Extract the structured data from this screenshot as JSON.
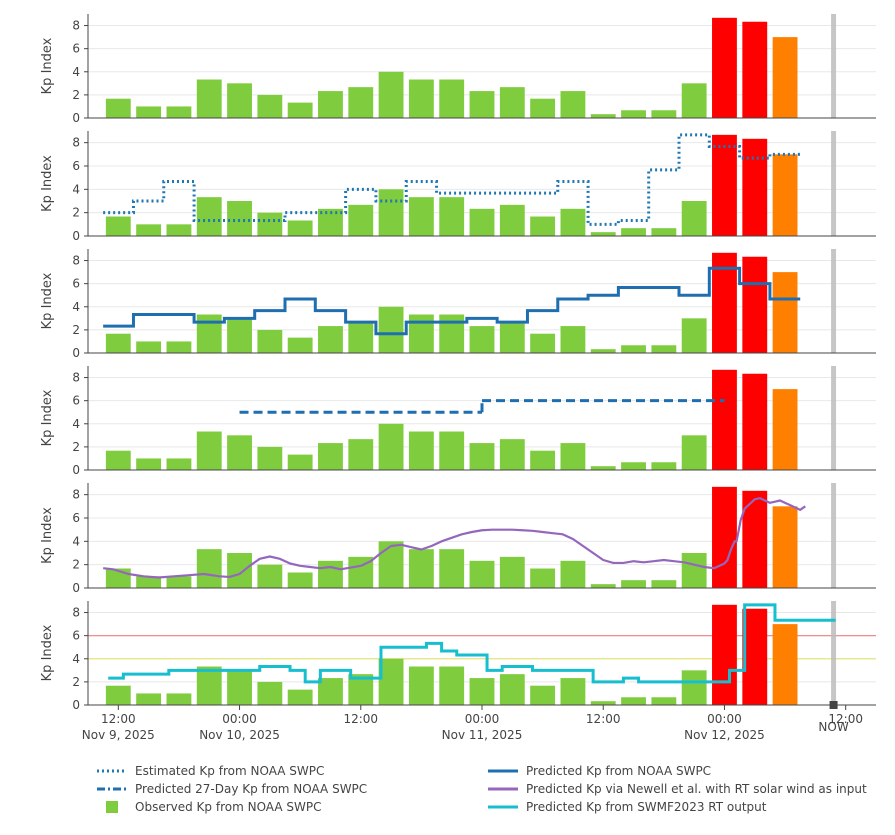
{
  "chart_data": {
    "type": "bar+line",
    "ylabel": "Kp Index",
    "ylim": [
      0,
      9
    ],
    "yticks": [
      0,
      2,
      4,
      6,
      8
    ],
    "xlim_hours": [
      -3,
      75
    ],
    "x_ticks": [
      {
        "hour": 0,
        "time": "12:00",
        "date": "Nov 9, 2025"
      },
      {
        "hour": 12,
        "time": "00:00",
        "date": "Nov 10, 2025"
      },
      {
        "hour": 24,
        "time": "12:00",
        "date": ""
      },
      {
        "hour": 36,
        "time": "00:00",
        "date": "Nov 11, 2025"
      },
      {
        "hour": 48,
        "time": "12:00",
        "date": ""
      },
      {
        "hour": 60,
        "time": "00:00",
        "date": "Nov 12, 2025"
      },
      {
        "hour": 72,
        "time": "12:00",
        "date": ""
      }
    ],
    "now_label": "NOW",
    "now_hour": 70.8,
    "observed": {
      "name": "Observed Kp from NOAA SWPC",
      "start_hour": 0,
      "interval_hours": 3,
      "values": [
        1.67,
        1.0,
        1.0,
        3.33,
        3.0,
        2.0,
        1.33,
        2.33,
        2.67,
        4.0,
        3.33,
        3.33,
        2.33,
        2.67,
        1.67,
        2.33,
        0.33,
        0.67,
        0.67,
        3.0,
        8.67,
        8.33,
        7.0
      ],
      "colors": [
        "#7fcc3f",
        "#7fcc3f",
        "#7fcc3f",
        "#7fcc3f",
        "#7fcc3f",
        "#7fcc3f",
        "#7fcc3f",
        "#7fcc3f",
        "#7fcc3f",
        "#7fcc3f",
        "#7fcc3f",
        "#7fcc3f",
        "#7fcc3f",
        "#7fcc3f",
        "#7fcc3f",
        "#7fcc3f",
        "#7fcc3f",
        "#7fcc3f",
        "#7fcc3f",
        "#7fcc3f",
        "#ff0000",
        "#ff0000",
        "#ff8000"
      ]
    },
    "estimated": {
      "name": "Estimated Kp from NOAA SWPC",
      "panel": 2,
      "color": "#1f77b4",
      "start_hour": 0,
      "interval_hours": 3,
      "values": [
        2.0,
        3.0,
        4.67,
        1.33,
        1.33,
        1.33,
        2.0,
        2.0,
        4.0,
        3.0,
        4.67,
        3.67,
        3.67,
        3.67,
        3.67,
        4.67,
        1.0,
        1.33,
        5.67,
        8.67,
        7.67,
        6.67,
        7.0
      ]
    },
    "predicted_swpc": {
      "name": "Predicted Kp from NOAA SWPC",
      "panel": 3,
      "color": "#1f6fb0",
      "start_hour": 0,
      "interval_hours": 3,
      "values": [
        2.33,
        3.33,
        3.33,
        2.67,
        3.0,
        3.67,
        4.67,
        3.67,
        2.67,
        1.67,
        2.67,
        2.67,
        3.0,
        2.67,
        3.67,
        4.67,
        5.0,
        5.67,
        5.67,
        5.0,
        7.33,
        6.0,
        4.67
      ]
    },
    "predicted_27day": {
      "name": "Predicted 27-Day Kp from NOAA SWPC",
      "panel": 4,
      "color": "#1f6fb0",
      "segments": [
        {
          "start_hour": 12,
          "end_hour": 36,
          "value": 5
        },
        {
          "start_hour": 36,
          "end_hour": 60,
          "value": 6
        }
      ]
    },
    "predicted_newell": {
      "name": "Predicted Kp via Newell et al. with RT solar wind as input",
      "panel": 5,
      "color": "#9467bd",
      "hours": [
        -1.5,
        -0.5,
        1,
        2.5,
        4,
        5.5,
        7,
        8.5,
        10,
        11,
        12,
        13,
        14,
        15,
        16,
        17,
        18,
        19,
        20,
        21,
        22,
        24,
        25,
        26,
        27,
        28,
        29,
        30,
        31,
        32,
        33,
        34,
        35,
        36,
        37,
        38,
        39,
        40,
        41,
        42,
        43,
        44,
        45,
        46,
        47,
        48,
        49,
        50,
        51,
        52,
        53,
        54,
        55,
        56,
        57,
        58,
        59,
        60,
        60.3,
        60.6,
        61,
        61.2,
        61.6,
        62,
        62.5,
        63,
        63.5,
        64,
        64.5,
        65,
        65.5,
        66,
        66.5,
        67,
        67.5,
        68
      ],
      "values": [
        1.7,
        1.6,
        1.2,
        1.0,
        0.9,
        1.0,
        1.1,
        1.2,
        1.0,
        0.95,
        1.2,
        1.9,
        2.5,
        2.7,
        2.5,
        2.1,
        1.9,
        1.8,
        1.7,
        1.8,
        1.6,
        1.9,
        2.3,
        3.0,
        3.6,
        3.7,
        3.5,
        3.3,
        3.6,
        4.0,
        4.3,
        4.6,
        4.8,
        4.95,
        5.0,
        5.0,
        5.0,
        4.95,
        4.9,
        4.8,
        4.7,
        4.6,
        4.2,
        3.6,
        3.0,
        2.4,
        2.15,
        2.15,
        2.3,
        2.2,
        2.3,
        2.4,
        2.3,
        2.2,
        2.0,
        1.8,
        1.7,
        2.1,
        2.4,
        3.2,
        4.0,
        4.0,
        5.8,
        6.8,
        7.2,
        7.6,
        7.7,
        7.5,
        7.3,
        7.4,
        7.5,
        7.3,
        7.1,
        6.9,
        6.7,
        7.0
      ]
    },
    "predicted_swmf": {
      "name": "Predicted Kp from SWMF2023 RT output",
      "panel": 6,
      "color": "#17becf",
      "start_hour": -1,
      "interval_hours": 1.5,
      "values": [
        2.33,
        2.67,
        2.67,
        2.67,
        3.0,
        3.0,
        3.0,
        3.0,
        3.0,
        3.0,
        3.33,
        3.33,
        3.0,
        2.0,
        3.0,
        3.0,
        2.33,
        2.33,
        5.0,
        5.0,
        5.0,
        5.33,
        4.67,
        4.33,
        4.33,
        3.0,
        3.33,
        3.33,
        3.0,
        3.0,
        3.0,
        3.0,
        2.0,
        2.0,
        2.33,
        2.0,
        2.0,
        2.0,
        2.0,
        2.0,
        2.0,
        3.0,
        8.67,
        8.67,
        7.33,
        7.33,
        7.33,
        7.33
      ],
      "reference_lines": [
        {
          "value": 6,
          "color": "#f08080"
        },
        {
          "value": 4,
          "color": "#e6e67a"
        }
      ]
    },
    "legend": [
      {
        "label": "Estimated Kp from NOAA SWPC",
        "style": "dotted",
        "color": "#1f77b4"
      },
      {
        "label": "Predicted Kp from NOAA SWPC",
        "style": "solid",
        "color": "#1f6fb0"
      },
      {
        "label": "Predicted 27-Day Kp from NOAA SWPC",
        "style": "dashdot",
        "color": "#1f6fb0"
      },
      {
        "label": "Predicted Kp via Newell et al. with RT solar wind as input",
        "style": "solid",
        "color": "#9467bd"
      },
      {
        "label": "Observed Kp from NOAA SWPC",
        "style": "square",
        "color": "#7fcc3f"
      },
      {
        "label": "Predicted Kp from SWMF2023 RT output",
        "style": "solid",
        "color": "#17becf"
      }
    ]
  }
}
